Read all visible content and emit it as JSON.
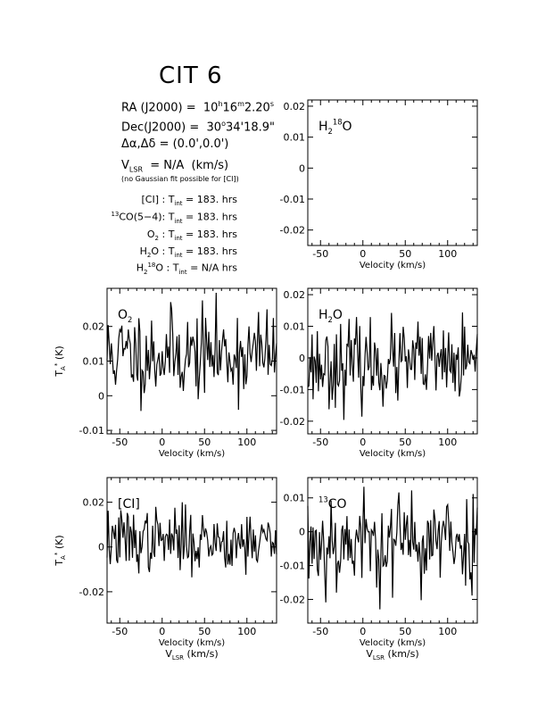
{
  "header": {
    "title": "CIT 6",
    "ra": "RA (J2000) = 10h16m2.20s",
    "dec": "Dec(J2000) = 30°34'18.9\"",
    "offset": "Δα,Δδ = (0.0',0.0')",
    "vlsr": "VLSR = N/A (km/s)",
    "note": "(no Gaussian fit possible for [CI])",
    "integrations": [
      "[CI] : Tint = 183. hrs",
      "13CO(5-4): Tint = 183. hrs",
      "O2 : Tint = 183. hrs",
      "H2O : Tint = 183. hrs",
      "H218O : Tint = N/A hrs"
    ]
  },
  "colors": {
    "line": "#000000",
    "background": "#ffffff"
  },
  "chart_data": [
    {
      "type": "line",
      "panel": "h218o",
      "label": "H218O",
      "xlim": [
        -65,
        135
      ],
      "ylim": [
        -0.025,
        0.022
      ],
      "xticks": [
        -50,
        0,
        50,
        100
      ],
      "yticks": [
        0.02,
        0.01,
        0,
        -0.01,
        -0.02
      ],
      "ytick_labels": [
        "0.02",
        "0.01",
        "0",
        "-0.01",
        "-0.02"
      ],
      "xlabel": "Velocity (km/s)",
      "ylabel": "",
      "bottom_label": "",
      "noise": {
        "mean": 0.0,
        "sigma": 0.0,
        "seed": 0
      },
      "x": [],
      "y": []
    },
    {
      "type": "line",
      "panel": "o2",
      "label": "O2",
      "xlim": [
        -65,
        135
      ],
      "ylim": [
        -0.011,
        0.031
      ],
      "xticks": [
        -50,
        0,
        50,
        100
      ],
      "yticks": [
        0.02,
        0.01,
        0,
        -0.01
      ],
      "ytick_labels": [
        "0.02",
        "0.01",
        "0",
        "-0.01"
      ],
      "xlabel": "Velocity (km/s)",
      "ylabel": "TA* (K)",
      "bottom_label": "",
      "noise": {
        "mean": 0.012,
        "sigma": 0.0065,
        "seed": 11
      }
    },
    {
      "type": "line",
      "panel": "h2o",
      "label": "H2O",
      "xlim": [
        -65,
        135
      ],
      "ylim": [
        -0.024,
        0.022
      ],
      "xticks": [
        -50,
        0,
        50,
        100
      ],
      "yticks": [
        0.02,
        0.01,
        0,
        -0.01,
        -0.02
      ],
      "ytick_labels": [
        "0.02",
        "0.01",
        "0",
        "-0.01",
        "-0.02"
      ],
      "xlabel": "Velocity (km/s)",
      "ylabel": "",
      "bottom_label": "",
      "noise": {
        "mean": -0.002,
        "sigma": 0.0065,
        "seed": 23
      }
    },
    {
      "type": "line",
      "panel": "ci",
      "label": "[CI]",
      "xlim": [
        -65,
        135
      ],
      "ylim": [
        -0.034,
        0.031
      ],
      "xticks": [
        -50,
        0,
        50,
        100
      ],
      "yticks": [
        0.02,
        0,
        -0.02
      ],
      "ytick_labels": [
        "0.02",
        "0",
        "-0.02"
      ],
      "xlabel": "Velocity (km/s)",
      "ylabel": "TA* (K)",
      "bottom_label": "VLSR (km/s)",
      "noise": {
        "mean": 0.003,
        "sigma": 0.007,
        "seed": 37
      }
    },
    {
      "type": "line",
      "panel": "13co",
      "label": "13CO",
      "xlim": [
        -65,
        135
      ],
      "ylim": [
        -0.027,
        0.016
      ],
      "xticks": [
        -50,
        0,
        50,
        100
      ],
      "yticks": [
        0.01,
        0,
        -0.01,
        -0.02
      ],
      "ytick_labels": [
        "0.01",
        "0",
        "-0.01",
        "-0.02"
      ],
      "xlabel": "Velocity (km/s)",
      "ylabel": "",
      "bottom_label": "VLSR (km/s)",
      "noise": {
        "mean": -0.003,
        "sigma": 0.0075,
        "seed": 53
      }
    }
  ]
}
